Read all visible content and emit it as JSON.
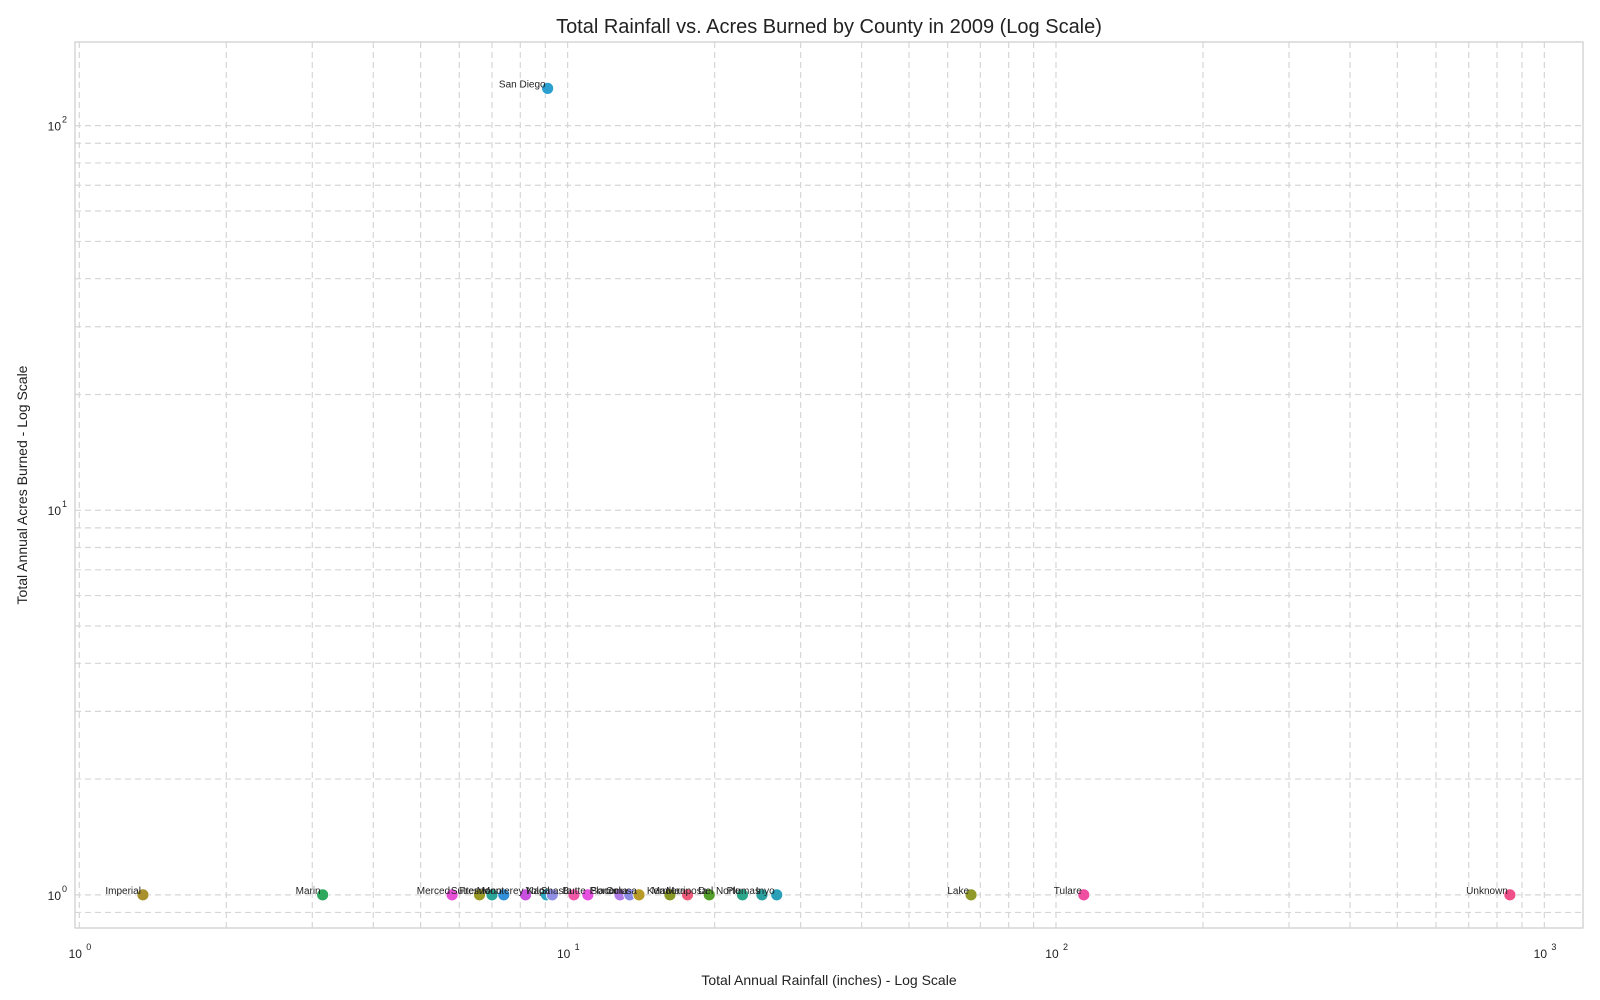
{
  "chart_data": {
    "type": "scatter",
    "title": "Total Rainfall vs. Acres Burned by County in 2009 (Log Scale)",
    "xlabel": "Total Annual Rainfall (inches) - Log Scale",
    "ylabel": "Total Annual Acres Burned - Log Scale",
    "xscale": "log",
    "yscale": "log",
    "xlim": [
      0.98,
      1200
    ],
    "ylim": [
      0.82,
      165
    ],
    "grid": true,
    "x_ticks": [
      {
        "value": 1,
        "base": "10",
        "exp": "0"
      },
      {
        "value": 10,
        "base": "10",
        "exp": "1"
      },
      {
        "value": 100,
        "base": "10",
        "exp": "2"
      },
      {
        "value": 1000,
        "base": "10",
        "exp": "3"
      }
    ],
    "y_ticks": [
      {
        "value": 1,
        "base": "10",
        "exp": "0"
      },
      {
        "value": 10,
        "base": "10",
        "exp": "1"
      },
      {
        "value": 100,
        "base": "10",
        "exp": "2"
      }
    ],
    "points": [
      {
        "label": "San Diego",
        "x": 9.1,
        "y": 125,
        "color": "#2a9fd0"
      },
      {
        "label": "Imperial",
        "x": 1.35,
        "y": 1,
        "color": "#a8902f"
      },
      {
        "label": "Marin",
        "x": 3.15,
        "y": 1,
        "color": "#2fa85e"
      },
      {
        "label": "Merced",
        "x": 5.8,
        "y": 1,
        "color": "#e64fd6"
      },
      {
        "label": "Sutter",
        "x": 6.6,
        "y": 1,
        "color": "#9a9a26"
      },
      {
        "label": "Fresno",
        "x": 7.0,
        "y": 1,
        "color": "#2aa699"
      },
      {
        "label": "Mono",
        "x": 7.4,
        "y": 1,
        "color": "#3290d8"
      },
      {
        "label": "Monterey",
        "x": 8.2,
        "y": 1,
        "color": "#c84fe0"
      },
      {
        "label": "Yolo",
        "x": 9.05,
        "y": 1,
        "color": "#2fa5c0"
      },
      {
        "label": "Napa",
        "x": 9.3,
        "y": 1,
        "color": "#8f8fe6"
      },
      {
        "label": "Shasta",
        "x": 10.3,
        "y": 1,
        "color": "#ee5aa8"
      },
      {
        "label": "Butte",
        "x": 11.0,
        "y": 1,
        "color": "#e64fe0"
      },
      {
        "label": "Placer",
        "x": 12.8,
        "y": 1,
        "color": "#b07ae8"
      },
      {
        "label": "Sonoma",
        "x": 13.4,
        "y": 1,
        "color": "#8b8be6"
      },
      {
        "label": "Colusa",
        "x": 14.0,
        "y": 1,
        "color": "#b89a28"
      },
      {
        "label": "Kern",
        "x": 16.2,
        "y": 1,
        "color": "#8a9a26"
      },
      {
        "label": "Madera",
        "x": 17.6,
        "y": 1,
        "color": "#ee5a7a"
      },
      {
        "label": "Mariposa",
        "x": 19.5,
        "y": 1,
        "color": "#55a02a"
      },
      {
        "label": "Del Norte",
        "x": 22.8,
        "y": 1,
        "color": "#2aa68a"
      },
      {
        "label": "Plumas",
        "x": 25.0,
        "y": 1,
        "color": "#2aa0a0"
      },
      {
        "label": "Inyo",
        "x": 26.8,
        "y": 1,
        "color": "#2a9fb8"
      },
      {
        "label": "Lake",
        "x": 67,
        "y": 1,
        "color": "#8f9a2a"
      },
      {
        "label": "Tulare",
        "x": 114,
        "y": 1,
        "color": "#ee4fa0"
      },
      {
        "label": "Unknown",
        "x": 850,
        "y": 1,
        "color": "#f0508a"
      }
    ]
  }
}
